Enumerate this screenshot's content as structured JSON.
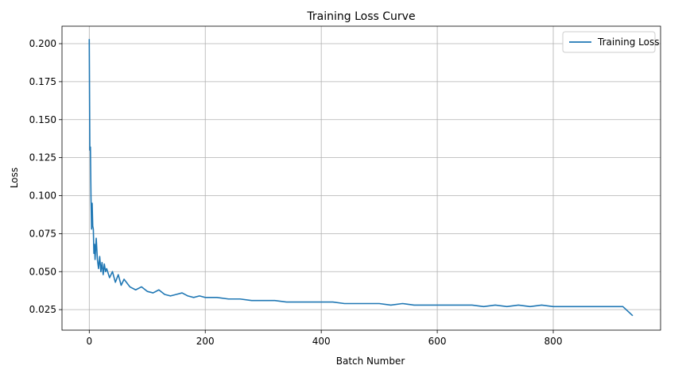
{
  "chart_data": {
    "type": "line",
    "title": "Training Loss Curve",
    "xlabel": "Batch Number",
    "ylabel": "Loss",
    "xlim": [
      -47,
      985
    ],
    "ylim": [
      0.0115,
      0.2115
    ],
    "xticks": [
      0,
      200,
      400,
      600,
      800
    ],
    "yticks": [
      0.025,
      0.05,
      0.075,
      0.1,
      0.125,
      0.15,
      0.175,
      0.2
    ],
    "ytick_labels": [
      "0.025",
      "0.050",
      "0.075",
      "0.100",
      "0.125",
      "0.150",
      "0.175",
      "0.200"
    ],
    "grid": true,
    "legend": {
      "position": "top-right"
    },
    "series": [
      {
        "name": "Training Loss",
        "color": "#1f77b4",
        "x": [
          0,
          1,
          2,
          3,
          4,
          5,
          6,
          7,
          8,
          9,
          10,
          12,
          14,
          16,
          18,
          20,
          22,
          24,
          26,
          28,
          30,
          35,
          40,
          45,
          50,
          55,
          60,
          70,
          80,
          90,
          100,
          110,
          120,
          130,
          140,
          150,
          160,
          170,
          180,
          190,
          200,
          220,
          240,
          260,
          280,
          300,
          320,
          340,
          360,
          380,
          400,
          420,
          440,
          460,
          480,
          500,
          520,
          540,
          560,
          580,
          600,
          620,
          640,
          660,
          680,
          700,
          720,
          740,
          760,
          780,
          800,
          820,
          840,
          860,
          880,
          900,
          920,
          937
        ],
        "y": [
          0.203,
          0.13,
          0.132,
          0.098,
          0.078,
          0.095,
          0.08,
          0.078,
          0.062,
          0.068,
          0.058,
          0.072,
          0.058,
          0.052,
          0.06,
          0.05,
          0.056,
          0.048,
          0.055,
          0.05,
          0.052,
          0.046,
          0.05,
          0.043,
          0.048,
          0.041,
          0.045,
          0.04,
          0.038,
          0.04,
          0.037,
          0.036,
          0.038,
          0.035,
          0.034,
          0.035,
          0.036,
          0.034,
          0.033,
          0.034,
          0.033,
          0.033,
          0.032,
          0.032,
          0.031,
          0.031,
          0.031,
          0.03,
          0.03,
          0.03,
          0.03,
          0.03,
          0.029,
          0.029,
          0.029,
          0.029,
          0.028,
          0.029,
          0.028,
          0.028,
          0.028,
          0.028,
          0.028,
          0.028,
          0.027,
          0.028,
          0.027,
          0.028,
          0.027,
          0.028,
          0.027,
          0.027,
          0.027,
          0.027,
          0.027,
          0.027,
          0.027,
          0.021
        ]
      }
    ]
  }
}
